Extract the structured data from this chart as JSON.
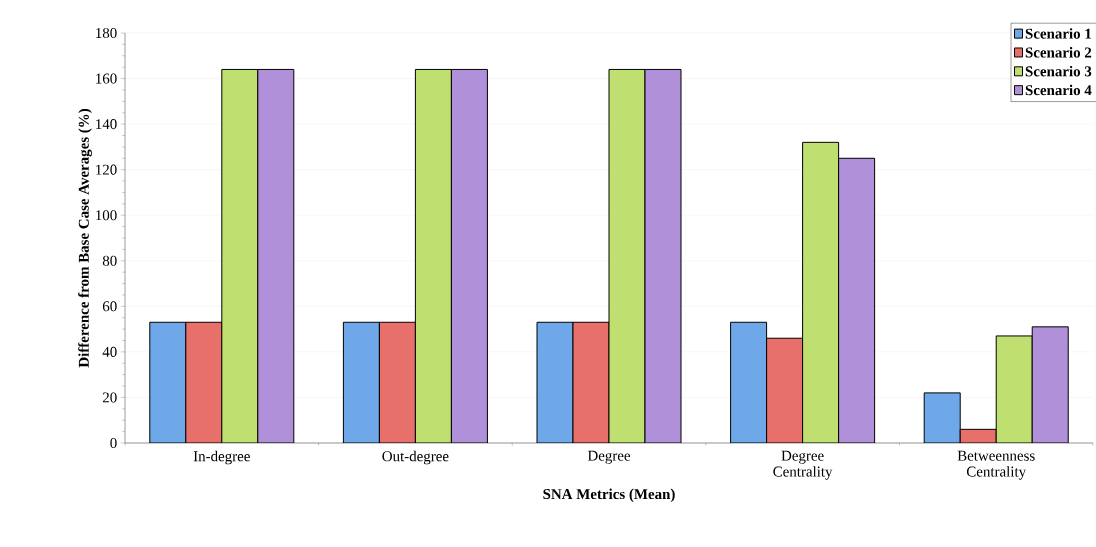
{
  "chart_data": {
    "type": "bar",
    "xlabel": "SNA Metrics (Mean)",
    "ylabel": "Difference from Base Case Averages (%)",
    "categories": [
      "In-degree",
      "Out-degree",
      "Degree",
      "Degree Centrality",
      "Betweenness Centrality"
    ],
    "series": [
      {
        "name": "Scenario 1",
        "color": "#6ea8e8",
        "values": [
          53,
          53,
          53,
          53,
          22
        ]
      },
      {
        "name": "Scenario 2",
        "color": "#e8706a",
        "values": [
          53,
          53,
          53,
          46,
          6
        ]
      },
      {
        "name": "Scenario 3",
        "color": "#bfe070",
        "values": [
          164,
          164,
          164,
          132,
          47
        ]
      },
      {
        "name": "Scenario 4",
        "color": "#b090d8",
        "values": [
          164,
          164,
          164,
          125,
          51
        ]
      }
    ],
    "ylim": [
      0,
      180
    ],
    "yticks": [
      0,
      20,
      40,
      60,
      80,
      100,
      120,
      140,
      160,
      180
    ],
    "grid": "y",
    "legend": "top right"
  }
}
